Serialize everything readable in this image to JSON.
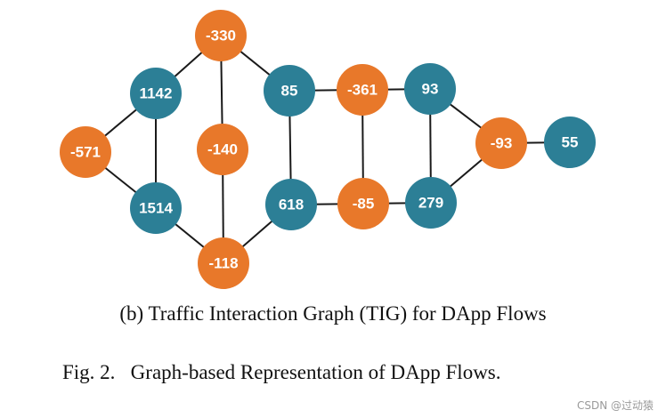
{
  "colors": {
    "positive": "#2c7f96",
    "negative": "#e8782a",
    "edge": "#1a1a1a",
    "label": "#ffffff"
  },
  "nodes": [
    {
      "id": "n_m330",
      "label": "-330",
      "kind": "negative"
    },
    {
      "id": "n_1142",
      "label": "1142",
      "kind": "positive"
    },
    {
      "id": "n_85",
      "label": "85",
      "kind": "positive"
    },
    {
      "id": "n_m361",
      "label": "-361",
      "kind": "negative"
    },
    {
      "id": "n_93",
      "label": "93",
      "kind": "positive"
    },
    {
      "id": "n_m571",
      "label": "-571",
      "kind": "negative"
    },
    {
      "id": "n_m140",
      "label": "-140",
      "kind": "negative"
    },
    {
      "id": "n_m93",
      "label": "-93",
      "kind": "negative"
    },
    {
      "id": "n_55",
      "label": "55",
      "kind": "positive"
    },
    {
      "id": "n_1514",
      "label": "1514",
      "kind": "positive"
    },
    {
      "id": "n_618",
      "label": "618",
      "kind": "positive"
    },
    {
      "id": "n_m85",
      "label": "-85",
      "kind": "negative"
    },
    {
      "id": "n_279",
      "label": "279",
      "kind": "positive"
    },
    {
      "id": "n_m118",
      "label": "-118",
      "kind": "negative"
    }
  ],
  "edges": [
    [
      "n_m330",
      "n_1142"
    ],
    [
      "n_m330",
      "n_85"
    ],
    [
      "n_m330",
      "n_m140"
    ],
    [
      "n_1142",
      "n_m571"
    ],
    [
      "n_1142",
      "n_1514"
    ],
    [
      "n_m571",
      "n_1514"
    ],
    [
      "n_1514",
      "n_m118"
    ],
    [
      "n_m140",
      "n_m118"
    ],
    [
      "n_m118",
      "n_618"
    ],
    [
      "n_85",
      "n_618"
    ],
    [
      "n_85",
      "n_m361"
    ],
    [
      "n_m361",
      "n_93"
    ],
    [
      "n_m361",
      "n_m85"
    ],
    [
      "n_618",
      "n_m85"
    ],
    [
      "n_m85",
      "n_279"
    ],
    [
      "n_93",
      "n_279"
    ],
    [
      "n_93",
      "n_m93"
    ],
    [
      "n_279",
      "n_m93"
    ],
    [
      "n_m93",
      "n_55"
    ]
  ],
  "captions": {
    "subfigure": "(b) Traffic Interaction Graph (TIG) for DApp Flows",
    "figure": "Fig. 2.   Graph-based Representation of DApp Flows."
  },
  "watermark": "CSDN @过动猿"
}
